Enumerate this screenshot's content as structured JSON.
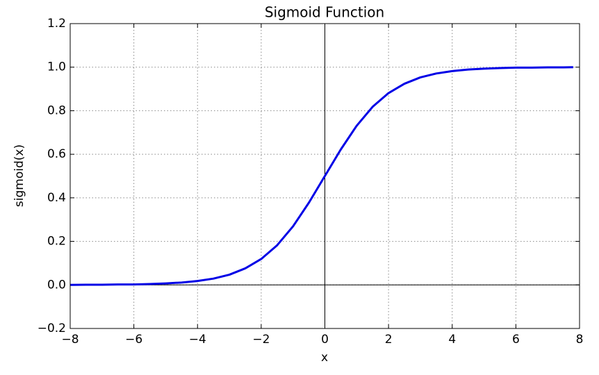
{
  "chart_data": {
    "type": "line",
    "title": "Sigmoid Function",
    "x_label": "x",
    "y_label": "sigmoid(x)",
    "x": [
      -8,
      -7.5,
      -7,
      -6.5,
      -6,
      -5.5,
      -5,
      -4.5,
      -4,
      -3.5,
      -3,
      -2.5,
      -2,
      -1.5,
      -1,
      -0.5,
      0,
      0.5,
      1,
      1.5,
      2,
      2.5,
      3,
      3.5,
      4,
      4.5,
      5,
      5.5,
      6,
      6.5,
      7,
      7.5,
      7.8
    ],
    "series": [
      {
        "color": "#0000e6",
        "values": [
          0.0,
          0.001,
          0.001,
          0.002,
          0.002,
          0.004,
          0.007,
          0.011,
          0.018,
          0.029,
          0.047,
          0.076,
          0.119,
          0.182,
          0.269,
          0.378,
          0.5,
          0.622,
          0.731,
          0.818,
          0.881,
          0.924,
          0.953,
          0.971,
          0.982,
          0.989,
          0.993,
          0.996,
          0.998,
          0.998,
          0.999,
          0.999,
          1.0
        ]
      }
    ],
    "xlim": [
      -8,
      8
    ],
    "xticks": [
      {
        "value": -8,
        "label": "−8"
      },
      {
        "value": -6,
        "label": "−6"
      },
      {
        "value": -4,
        "label": "−4"
      },
      {
        "value": -2,
        "label": "−2"
      },
      0,
      2,
      4,
      6,
      8
    ],
    "ylim": [
      -0.2,
      1.2
    ],
    "yticks": [
      {
        "value": -0.2,
        "label": "−0.2"
      },
      {
        "value": 0,
        "label": "0.0"
      },
      0.2,
      0.4,
      0.6,
      0.8,
      {
        "value": 1,
        "label": "1.0"
      },
      1.2
    ],
    "grid": true
  }
}
